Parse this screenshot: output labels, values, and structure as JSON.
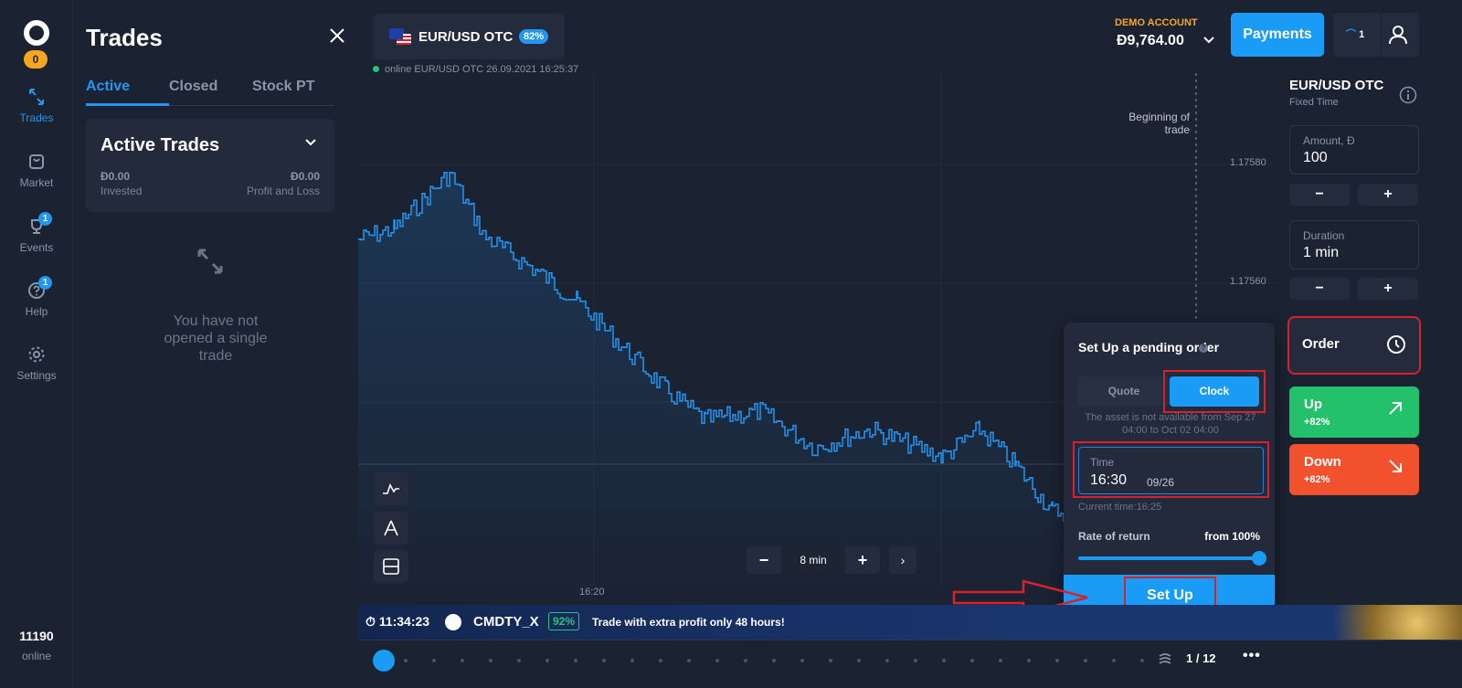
{
  "sidebar": {
    "logo_badge": "0",
    "items": [
      {
        "label": "Trades",
        "icon": "arrows-swap-icon",
        "active": true
      },
      {
        "label": "Market",
        "icon": "bag-icon"
      },
      {
        "label": "Events",
        "icon": "trophy-icon",
        "badge": "1"
      },
      {
        "label": "Help",
        "icon": "question-icon",
        "badge": "1"
      },
      {
        "label": "Settings",
        "icon": "gear-icon"
      }
    ],
    "online_count": "11190",
    "online_label": "online"
  },
  "trades_panel": {
    "title": "Trades",
    "tabs": [
      "Active",
      "Closed",
      "Stock PT"
    ],
    "active_trades": {
      "title": "Active Trades",
      "invested_value": "Đ0.00",
      "invested_label": "Invested",
      "pl_value": "Đ0.00",
      "pl_label": "Profit and Loss"
    },
    "empty_text": "You have not opened a single trade"
  },
  "chart": {
    "asset": "EUR/USD OTC",
    "asset_pct": "82%",
    "online_status": "online EUR/USD OTC  26.09.2021 16:25:37",
    "beginning_label": "Beginning of trade",
    "price_ticks": [
      "1.17580",
      "1.17560"
    ],
    "time_tick": "16:20",
    "zoom_value": "8 min",
    "line_color": "#2196f3"
  },
  "header": {
    "demo_label": "DEMO ACCOUNT",
    "demo_balance": "Đ9,764.00",
    "payments_label": "Payments",
    "level": "1"
  },
  "right_panel": {
    "asset": "EUR/USD OTC",
    "type": "Fixed Time",
    "amount_label": "Amount, Đ",
    "amount_value": "100",
    "duration_label": "Duration",
    "duration_value": "1 min",
    "order_label": "Order",
    "up_label": "Up",
    "up_pct": "+82%",
    "down_label": "Down",
    "down_pct": "+82%",
    "up_color": "#23c16b",
    "down_color": "#f2512e"
  },
  "pending_order": {
    "title": "Set Up a pending order",
    "quote_label": "Quote",
    "clock_label": "Clock",
    "note": "The asset is not available from Sep 27 04:00 to Oct 02 04:00",
    "time_label": "Time",
    "time_value": "16:30",
    "date_value": "09/26",
    "current_time": "Current time:16:25",
    "ror_label": "Rate of return",
    "ror_value": "from 100%",
    "setup_label": "Set Up"
  },
  "ticker": {
    "timer": "11:34:23",
    "asset": "CMDTY_X",
    "pct": "92%",
    "message": "Trade with extra profit only 48 hours!"
  },
  "bottom_bar": {
    "page": "1 / 12"
  }
}
